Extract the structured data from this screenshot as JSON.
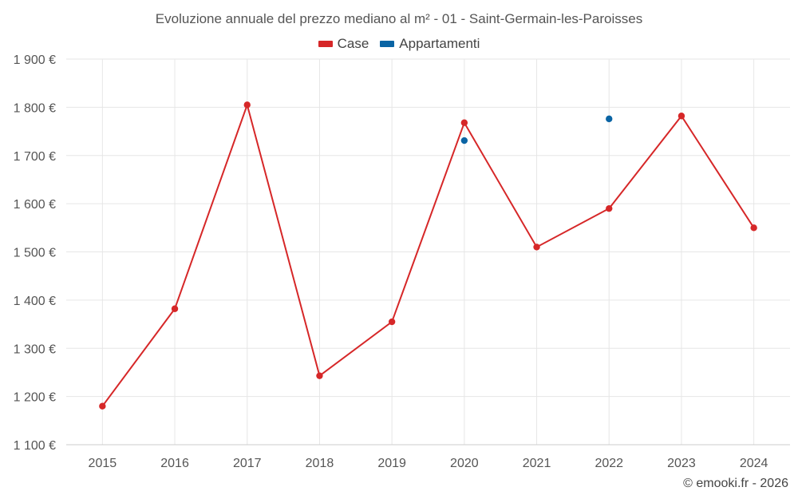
{
  "chart_data": {
    "type": "line",
    "title": "Evoluzione annuale del prezzo mediano al m² - 01 - Saint-Germain-les-Paroisses",
    "categories": [
      "2015",
      "2016",
      "2017",
      "2018",
      "2019",
      "2020",
      "2021",
      "2022",
      "2023",
      "2024"
    ],
    "series": [
      {
        "name": "Case",
        "color": "#d62728",
        "values": [
          1180,
          1382,
          1805,
          1243,
          1355,
          1768,
          1510,
          1590,
          1782,
          1550
        ]
      },
      {
        "name": "Appartamenti",
        "color": "#0a64a4",
        "values": [
          null,
          null,
          null,
          null,
          null,
          1731,
          null,
          1776,
          null,
          null
        ]
      }
    ],
    "ylim": [
      1100,
      1900
    ],
    "yticks": [
      1100,
      1200,
      1300,
      1400,
      1500,
      1600,
      1700,
      1800,
      1900
    ],
    "ytick_labels": [
      "1 100 €",
      "1 200 €",
      "1 300 €",
      "1 400 €",
      "1 500 €",
      "1 600 €",
      "1 700 €",
      "1 800 €",
      "1 900 €"
    ],
    "grid": true,
    "legend_position": "top-center",
    "credit": "© emooki.fr - 2026"
  }
}
